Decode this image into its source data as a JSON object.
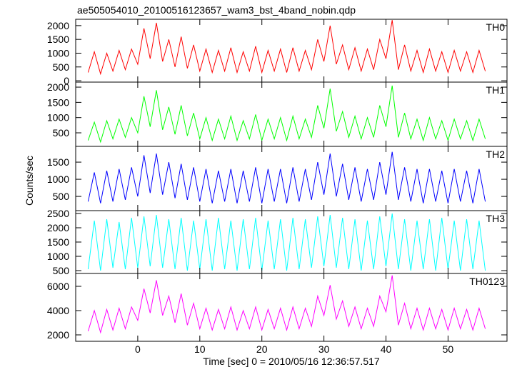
{
  "chart_data": [
    {
      "type": "line",
      "title": "ae505054010_20100516123657_wam3_bst_4band_nobin.qdp",
      "x": [
        -8,
        -7,
        -6,
        -5,
        -4,
        -3,
        -2,
        -1,
        0,
        1,
        2,
        3,
        4,
        5,
        6,
        7,
        8,
        9,
        10,
        11,
        12,
        13,
        14,
        15,
        16,
        17,
        18,
        19,
        20,
        21,
        22,
        23,
        24,
        25,
        26,
        27,
        28,
        29,
        30,
        31,
        32,
        33,
        34,
        35,
        36,
        37,
        38,
        39,
        40,
        41,
        42,
        43,
        44,
        45,
        46,
        47,
        48,
        49,
        50,
        51,
        52,
        53,
        54,
        55,
        56
      ],
      "series": [
        {
          "name": "TH0",
          "color": "#ff0000",
          "values": [
            300,
            1050,
            250,
            1000,
            350,
            1100,
            400,
            1150,
            600,
            1900,
            800,
            2100,
            700,
            1500,
            500,
            1600,
            450,
            1300,
            350,
            1150,
            300,
            1100,
            350,
            1200,
            300,
            1050,
            350,
            1250,
            300,
            1100,
            350,
            1150,
            300,
            1200,
            350,
            1100,
            400,
            1500,
            700,
            2000,
            600,
            1300,
            400,
            1200,
            350,
            1150,
            400,
            1500,
            800,
            2200,
            400,
            1300,
            350,
            1100,
            300,
            1150,
            350,
            1050,
            300,
            1100,
            350,
            1050,
            300,
            1100,
            350
          ]
        }
      ],
      "xlim": [
        -10,
        59.5
      ],
      "xticks": [
        0,
        10,
        20,
        30,
        40,
        50
      ],
      "ylim": [
        -50,
        2230
      ],
      "yticks": [
        0,
        500,
        1000,
        1500,
        2000
      ]
    },
    {
      "type": "line",
      "x": [
        -8,
        -7,
        -6,
        -5,
        -4,
        -3,
        -2,
        -1,
        0,
        1,
        2,
        3,
        4,
        5,
        6,
        7,
        8,
        9,
        10,
        11,
        12,
        13,
        14,
        15,
        16,
        17,
        18,
        19,
        20,
        21,
        22,
        23,
        24,
        25,
        26,
        27,
        28,
        29,
        30,
        31,
        32,
        33,
        34,
        35,
        36,
        37,
        38,
        39,
        40,
        41,
        42,
        43,
        44,
        45,
        46,
        47,
        48,
        49,
        50,
        51,
        52,
        53,
        54,
        55,
        56
      ],
      "series": [
        {
          "name": "TH1",
          "color": "#00ff00",
          "values": [
            250,
            850,
            200,
            900,
            300,
            950,
            350,
            1000,
            500,
            1700,
            700,
            1900,
            600,
            1350,
            450,
            1400,
            400,
            1150,
            300,
            1000,
            250,
            950,
            300,
            1050,
            250,
            900,
            300,
            1100,
            250,
            950,
            300,
            1000,
            250,
            1050,
            300,
            950,
            350,
            1400,
            650,
            1950,
            550,
            1200,
            350,
            1050,
            300,
            1000,
            350,
            1400,
            700,
            2050,
            350,
            1150,
            300,
            950,
            250,
            1000,
            300,
            900,
            250,
            950,
            300,
            900,
            250,
            950,
            300
          ]
        }
      ],
      "xlim": [
        -10,
        59.5
      ],
      "xticks": [
        0,
        10,
        20,
        30,
        40,
        50
      ],
      "ylim": [
        55,
        2165
      ],
      "yticks": [
        500,
        1000,
        1500,
        2000
      ]
    },
    {
      "type": "line",
      "ylabel": "Counts/sec",
      "x": [
        -8,
        -7,
        -6,
        -5,
        -4,
        -3,
        -2,
        -1,
        0,
        1,
        2,
        3,
        4,
        5,
        6,
        7,
        8,
        9,
        10,
        11,
        12,
        13,
        14,
        15,
        16,
        17,
        18,
        19,
        20,
        21,
        22,
        23,
        24,
        25,
        26,
        27,
        28,
        29,
        30,
        31,
        32,
        33,
        34,
        35,
        36,
        37,
        38,
        39,
        40,
        41,
        42,
        43,
        44,
        45,
        46,
        47,
        48,
        49,
        50,
        51,
        52,
        53,
        54,
        55,
        56
      ],
      "series": [
        {
          "name": "TH2",
          "color": "#0000ff",
          "values": [
            350,
            1200,
            300,
            1250,
            350,
            1300,
            400,
            1350,
            500,
            1700,
            600,
            1750,
            550,
            1500,
            450,
            1450,
            400,
            1350,
            350,
            1300,
            300,
            1250,
            350,
            1300,
            300,
            1250,
            350,
            1350,
            300,
            1300,
            350,
            1300,
            300,
            1350,
            350,
            1300,
            400,
            1500,
            550,
            1750,
            500,
            1450,
            400,
            1350,
            350,
            1300,
            400,
            1500,
            550,
            1800,
            400,
            1350,
            350,
            1300,
            300,
            1300,
            350,
            1250,
            300,
            1300,
            350,
            1250,
            300,
            1300,
            350
          ]
        }
      ],
      "xlim": [
        -10,
        59.5
      ],
      "xticks": [
        0,
        10,
        20,
        30,
        40,
        50
      ],
      "ylim": [
        85,
        1960
      ],
      "yticks": [
        500,
        1000,
        1500
      ]
    },
    {
      "type": "line",
      "x": [
        -8,
        -7,
        -6,
        -5,
        -4,
        -3,
        -2,
        -1,
        0,
        1,
        2,
        3,
        4,
        5,
        6,
        7,
        8,
        9,
        10,
        11,
        12,
        13,
        14,
        15,
        16,
        17,
        18,
        19,
        20,
        21,
        22,
        23,
        24,
        25,
        26,
        27,
        28,
        29,
        30,
        31,
        32,
        33,
        34,
        35,
        36,
        37,
        38,
        39,
        40,
        41,
        42,
        43,
        44,
        45,
        46,
        47,
        48,
        49,
        50,
        51,
        52,
        53,
        54,
        55,
        56
      ],
      "series": [
        {
          "name": "TH3",
          "color": "#00ffff",
          "values": [
            550,
            2250,
            500,
            2300,
            600,
            2200,
            550,
            2350,
            600,
            2400,
            650,
            2450,
            600,
            2300,
            550,
            2350,
            500,
            2250,
            550,
            2300,
            500,
            2350,
            550,
            2250,
            500,
            2300,
            550,
            2350,
            500,
            2250,
            550,
            2300,
            500,
            2350,
            550,
            2300,
            600,
            2400,
            650,
            2450,
            600,
            2350,
            550,
            2300,
            500,
            2250,
            550,
            2400,
            650,
            2500,
            550,
            2300,
            500,
            2250,
            550,
            2300,
            500,
            2350,
            550,
            2250,
            500,
            2300,
            550,
            2250,
            500
          ]
        }
      ],
      "xlim": [
        -10,
        59.5
      ],
      "xticks": [
        0,
        10,
        20,
        30,
        40,
        50
      ],
      "ylim": [
        400,
        2600
      ],
      "yticks": [
        500,
        1000,
        1500,
        2000,
        2500
      ]
    },
    {
      "type": "line",
      "xlabel": "Time [sec] 0 = 2010/05/16 12:36:57.517",
      "x": [
        -8,
        -7,
        -6,
        -5,
        -4,
        -3,
        -2,
        -1,
        0,
        1,
        2,
        3,
        4,
        5,
        6,
        7,
        8,
        9,
        10,
        11,
        12,
        13,
        14,
        15,
        16,
        17,
        18,
        19,
        20,
        21,
        22,
        23,
        24,
        25,
        26,
        27,
        28,
        29,
        30,
        31,
        32,
        33,
        34,
        35,
        36,
        37,
        38,
        39,
        40,
        41,
        42,
        43,
        44,
        45,
        46,
        47,
        48,
        49,
        50,
        51,
        52,
        53,
        54,
        55,
        56
      ],
      "series": [
        {
          "name": "TH0123",
          "color": "#ff00ff",
          "values": [
            2300,
            4000,
            2200,
            4100,
            2400,
            4200,
            2500,
            4300,
            3200,
            5800,
            3800,
            6500,
            3600,
            5200,
            3000,
            5400,
            2800,
            4600,
            2500,
            4200,
            2400,
            4100,
            2500,
            4300,
            2400,
            4000,
            2500,
            4300,
            2400,
            4100,
            2500,
            4200,
            2400,
            4300,
            2500,
            4200,
            2700,
            5200,
            3600,
            6100,
            3300,
            4800,
            2700,
            4300,
            2500,
            4200,
            2700,
            5200,
            3900,
            6900,
            2800,
            4600,
            2500,
            4200,
            2400,
            4200,
            2500,
            4100,
            2400,
            4200,
            2500,
            4100,
            2400,
            4200,
            2500
          ]
        }
      ],
      "xlim": [
        -10,
        59.5
      ],
      "xticks": [
        0,
        10,
        20,
        30,
        40,
        50
      ],
      "ylim": [
        1470,
        7060
      ],
      "yticks": [
        2000,
        4000,
        6000
      ]
    }
  ]
}
